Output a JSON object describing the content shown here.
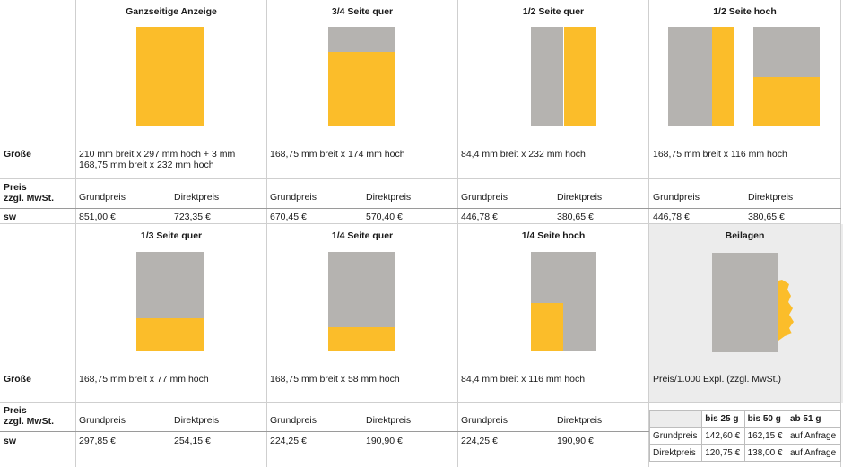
{
  "columns_top": [
    "Ganzseitige Anzeige",
    "3/4 Seite quer",
    "1/2 Seite quer",
    "1/2 Seite hoch"
  ],
  "columns_bottom": [
    "1/3 Seite quer",
    "1/4 Seite quer",
    "1/4 Seite hoch",
    "Beilagen"
  ],
  "labels": {
    "size": "Größe",
    "price_line1": "Preis",
    "price_line2": "zzgl. MwSt.",
    "sw": "sw"
  },
  "top": {
    "sizes": [
      "210 mm breit x 297 mm hoch + 3 mm",
      "168,75 mm breit x 174 mm hoch",
      "84,4 mm breit x 232 mm hoch",
      "168,75 mm breit x 116 mm hoch"
    ],
    "size_extra": "168,75 mm breit x 232 mm hoch",
    "price_heads": [
      "Grundpreis",
      "Direktpreis"
    ],
    "prices": [
      [
        "851,00 €",
        "723,35 €"
      ],
      [
        "670,45 €",
        "570,40 €"
      ],
      [
        "446,78 €",
        "380,65 €"
      ],
      [
        "446,78 €",
        "380,65 €"
      ]
    ]
  },
  "bottom": {
    "sizes": [
      "168,75 mm breit x 77 mm hoch",
      "168,75 mm breit x 58 mm hoch",
      "84,4 mm breit x 116 mm hoch",
      "Preis/1.000 Expl. (zzgl. MwSt.)"
    ],
    "price_heads": [
      "Grundpreis",
      "Direktpreis"
    ],
    "prices": [
      [
        "297,85 €",
        "254,15 €"
      ],
      [
        "224,25 €",
        "190,90 €"
      ],
      [
        "224,25 €",
        "190,90 €"
      ]
    ],
    "beilagen": {
      "heads": [
        "bis 25 g",
        "bis 50 g",
        "ab 51 g"
      ],
      "rows": [
        {
          "label": "Grundpreis",
          "values": [
            "142,60 €",
            "162,15 €",
            "auf Anfrage"
          ]
        },
        {
          "label": "Direktpreis",
          "values": [
            "120,75 €",
            "138,00 €",
            "auf Anfrage"
          ]
        }
      ]
    }
  },
  "colors": {
    "yellow": "#fbbd2a",
    "gray": "#b5b3b0",
    "beilagen_bg": "#ececec"
  }
}
